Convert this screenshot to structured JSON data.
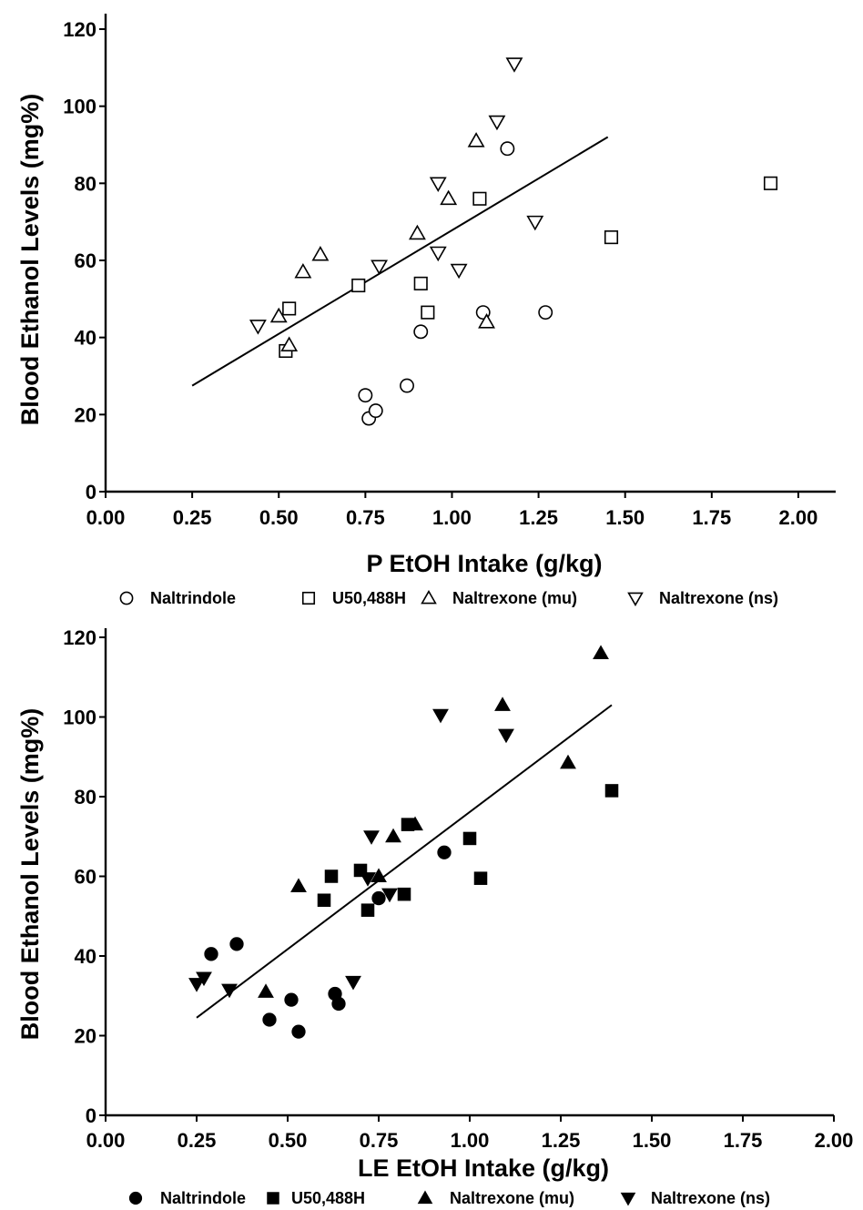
{
  "chart_data": [
    {
      "type": "scatter",
      "marker_fill": "open",
      "xlabel": "P EtOH Intake (g/kg)",
      "ylabel": "Blood Ethanol Levels (mg%)",
      "xlim": [
        0,
        2.1
      ],
      "ylim": [
        0,
        120
      ],
      "x_ticks": [
        "0.00",
        "0.25",
        "0.50",
        "0.75",
        "1.00",
        "1.25",
        "1.50",
        "1.75",
        "2.00"
      ],
      "y_ticks": [
        "0",
        "20",
        "40",
        "60",
        "80",
        "100",
        "120"
      ],
      "legend_position": "bottom",
      "series": [
        {
          "name": "Naltrindole",
          "marker": "circle",
          "points": [
            [
              0.75,
              25
            ],
            [
              0.76,
              19
            ],
            [
              0.78,
              21
            ],
            [
              0.87,
              27.5
            ],
            [
              0.91,
              41.5
            ],
            [
              1.09,
              46.5
            ],
            [
              1.16,
              89
            ],
            [
              1.27,
              46.5
            ]
          ]
        },
        {
          "name": "U50,488H",
          "marker": "square",
          "points": [
            [
              0.52,
              36.5
            ],
            [
              0.53,
              47.5
            ],
            [
              0.73,
              53.5
            ],
            [
              0.91,
              54
            ],
            [
              0.93,
              46.5
            ],
            [
              1.08,
              76
            ],
            [
              1.46,
              66
            ],
            [
              1.92,
              80
            ]
          ]
        },
        {
          "name": "Naltrexone (mu)",
          "marker": "triangle-up",
          "points": [
            [
              0.5,
              45.5
            ],
            [
              0.53,
              38
            ],
            [
              0.57,
              57
            ],
            [
              0.62,
              61.5
            ],
            [
              0.9,
              67
            ],
            [
              0.99,
              76
            ],
            [
              1.07,
              91
            ],
            [
              1.1,
              44
            ]
          ]
        },
        {
          "name": "Naltrexone (ns)",
          "marker": "triangle-down",
          "points": [
            [
              0.44,
              43
            ],
            [
              0.79,
              58.5
            ],
            [
              0.96,
              80
            ],
            [
              0.96,
              62
            ],
            [
              1.02,
              57.5
            ],
            [
              1.13,
              96
            ],
            [
              1.18,
              111
            ],
            [
              1.24,
              70
            ]
          ]
        }
      ],
      "fit_line": {
        "x": [
          0.25,
          1.45
        ],
        "y": [
          27.5,
          92
        ]
      }
    },
    {
      "type": "scatter",
      "marker_fill": "filled",
      "xlabel": "LE EtOH Intake (g/kg)",
      "ylabel": "Blood Ethanol Levels (mg%)",
      "xlim": [
        0,
        2.0
      ],
      "ylim": [
        0,
        120
      ],
      "x_ticks": [
        "0.00",
        "0.25",
        "0.50",
        "0.75",
        "1.00",
        "1.25",
        "1.50",
        "1.75",
        "2.00"
      ],
      "y_ticks": [
        "0",
        "20",
        "40",
        "60",
        "80",
        "100",
        "120"
      ],
      "legend_position": "bottom",
      "series": [
        {
          "name": "Naltrindole",
          "marker": "circle",
          "points": [
            [
              0.29,
              40.5
            ],
            [
              0.36,
              43
            ],
            [
              0.45,
              24
            ],
            [
              0.51,
              29
            ],
            [
              0.53,
              21
            ],
            [
              0.63,
              30.5
            ],
            [
              0.64,
              28
            ],
            [
              0.75,
              54.5
            ],
            [
              0.93,
              66
            ]
          ]
        },
        {
          "name": "U50,488H",
          "marker": "square",
          "points": [
            [
              0.6,
              54
            ],
            [
              0.62,
              60
            ],
            [
              0.7,
              61.5
            ],
            [
              0.72,
              51.5
            ],
            [
              0.82,
              55.5
            ],
            [
              0.83,
              73
            ],
            [
              1.0,
              69.5
            ],
            [
              1.03,
              59.5
            ],
            [
              1.39,
              81.5
            ]
          ]
        },
        {
          "name": "Naltrexone (mu)",
          "marker": "triangle-up",
          "points": [
            [
              0.44,
              31
            ],
            [
              0.53,
              57.5
            ],
            [
              0.75,
              60
            ],
            [
              0.79,
              70
            ],
            [
              0.85,
              73
            ],
            [
              1.09,
              103
            ],
            [
              1.27,
              88.5
            ],
            [
              1.36,
              116
            ]
          ]
        },
        {
          "name": "Naltrexone (ns)",
          "marker": "triangle-down",
          "points": [
            [
              0.25,
              33
            ],
            [
              0.27,
              34.5
            ],
            [
              0.34,
              31.5
            ],
            [
              0.68,
              33.5
            ],
            [
              0.72,
              59.5
            ],
            [
              0.73,
              70
            ],
            [
              0.78,
              55.5
            ],
            [
              0.92,
              100.5
            ],
            [
              1.1,
              95.5
            ]
          ]
        }
      ],
      "fit_line": {
        "x": [
          0.25,
          1.39
        ],
        "y": [
          24.5,
          103
        ]
      }
    }
  ]
}
